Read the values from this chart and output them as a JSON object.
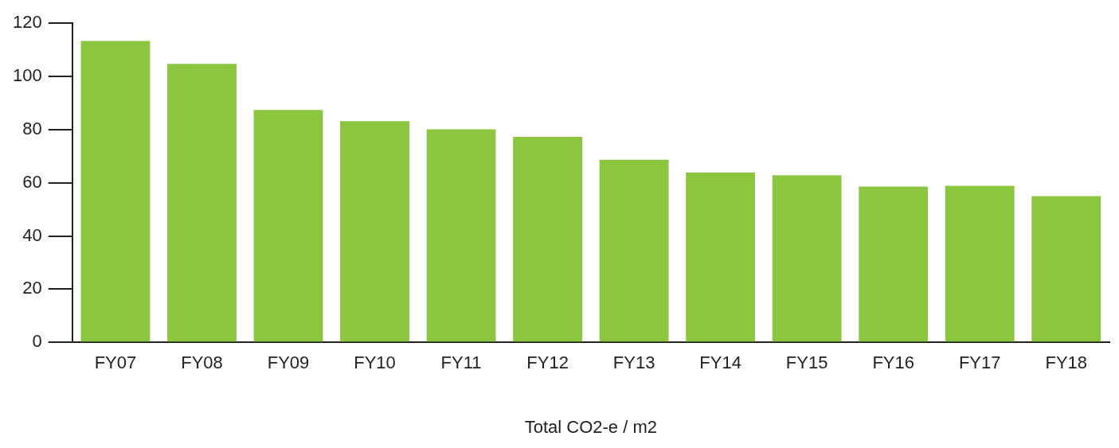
{
  "chart_data": {
    "type": "bar",
    "xlabel": "Total CO2-e / m2",
    "categories": [
      "FY07",
      "FY08",
      "FY09",
      "FY10",
      "FY11",
      "FY12",
      "FY13",
      "FY14",
      "FY15",
      "FY16",
      "FY17",
      "FY18"
    ],
    "values": [
      113.3,
      104.7,
      87.4,
      83.2,
      80.1,
      77.3,
      68.7,
      63.9,
      62.8,
      58.6,
      58.9,
      55.0
    ],
    "color": "#8cc540",
    "ylim": [
      0,
      120
    ],
    "yticks": [
      0,
      20,
      40,
      60,
      80,
      100,
      120
    ],
    "grid": false,
    "legend": false
  }
}
